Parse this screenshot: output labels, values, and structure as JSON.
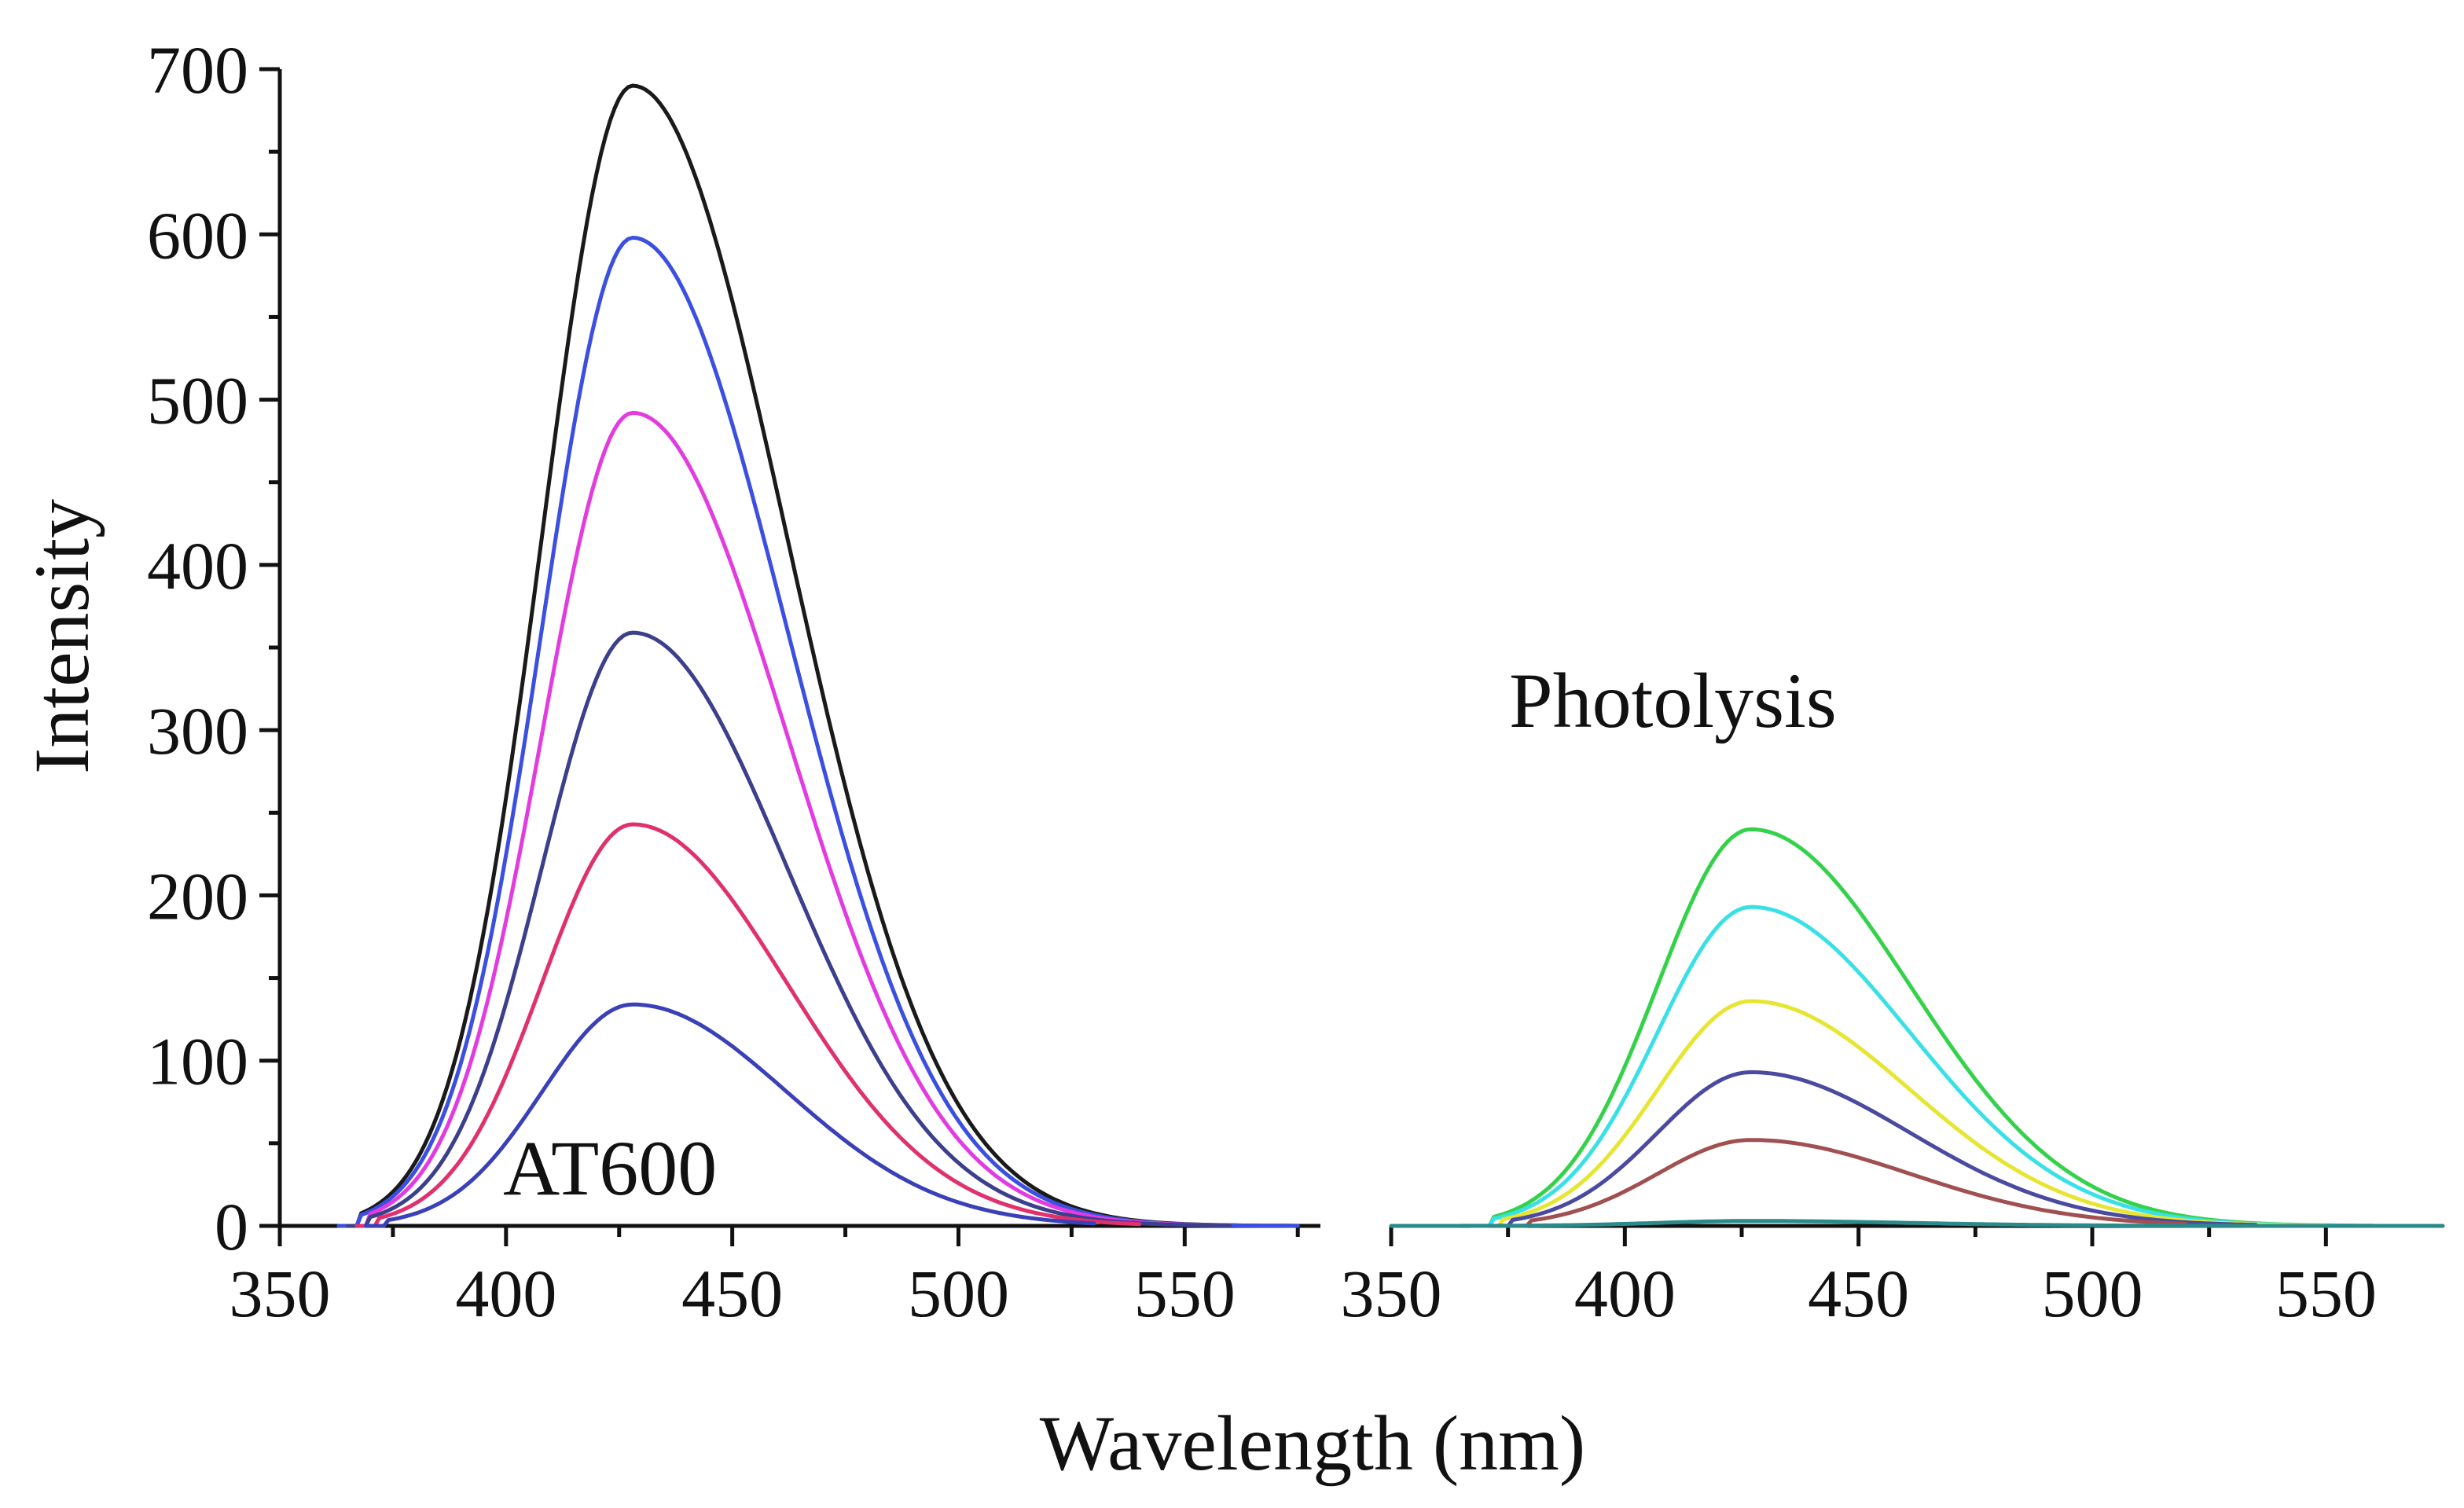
{
  "figure": {
    "xlabel": "Wavelength (nm)",
    "ylabel": "Intensity"
  },
  "chart_data": [
    {
      "type": "line",
      "title": "AT600",
      "xlabel": "Wavelength (nm)",
      "ylabel": "Intensity",
      "xlim": [
        350,
        580
      ],
      "ylim": [
        0,
        700
      ],
      "xticks": [
        350,
        400,
        450,
        500,
        550
      ],
      "yticks": [
        0,
        100,
        200,
        300,
        400,
        500,
        600,
        700
      ],
      "peak_wavelength": 428,
      "series": [
        {
          "name": "black",
          "color": "#1a1a1a",
          "peak": 690,
          "onset": 368,
          "end": 575
        },
        {
          "name": "blue",
          "color": "#3b4fe0",
          "peak": 598,
          "onset": 368,
          "end": 575
        },
        {
          "name": "magenta",
          "color": "#e23be0",
          "peak": 492,
          "onset": 370,
          "end": 560
        },
        {
          "name": "navy",
          "color": "#3b3f8c",
          "peak": 359,
          "onset": 370,
          "end": 560
        },
        {
          "name": "crimson",
          "color": "#e0306e",
          "peak": 243,
          "onset": 372,
          "end": 540
        },
        {
          "name": "indigo",
          "color": "#3a40b8",
          "peak": 134,
          "onset": 374,
          "end": 530
        }
      ]
    },
    {
      "type": "line",
      "title": "Photolysis",
      "xlabel": "Wavelength (nm)",
      "ylabel": "Intensity",
      "xlim": [
        350,
        575
      ],
      "ylim": [
        0,
        700
      ],
      "xticks": [
        350,
        400,
        450,
        500,
        550
      ],
      "peak_wavelength": 427,
      "series": [
        {
          "name": "green",
          "color": "#34d24a",
          "peak": 240,
          "onset": 372,
          "end": 560
        },
        {
          "name": "cyan",
          "color": "#39e0e6",
          "peak": 193,
          "onset": 372,
          "end": 555
        },
        {
          "name": "yellow",
          "color": "#e6e632",
          "peak": 136,
          "onset": 374,
          "end": 550
        },
        {
          "name": "slate-blue",
          "color": "#4a4aa0",
          "peak": 93,
          "onset": 376,
          "end": 535
        },
        {
          "name": "brown",
          "color": "#a05050",
          "peak": 52,
          "onset": 380,
          "end": 520
        },
        {
          "name": "baseline",
          "color": "#2b8a8a",
          "peak": 3,
          "onset": 350,
          "end": 575
        }
      ]
    }
  ]
}
